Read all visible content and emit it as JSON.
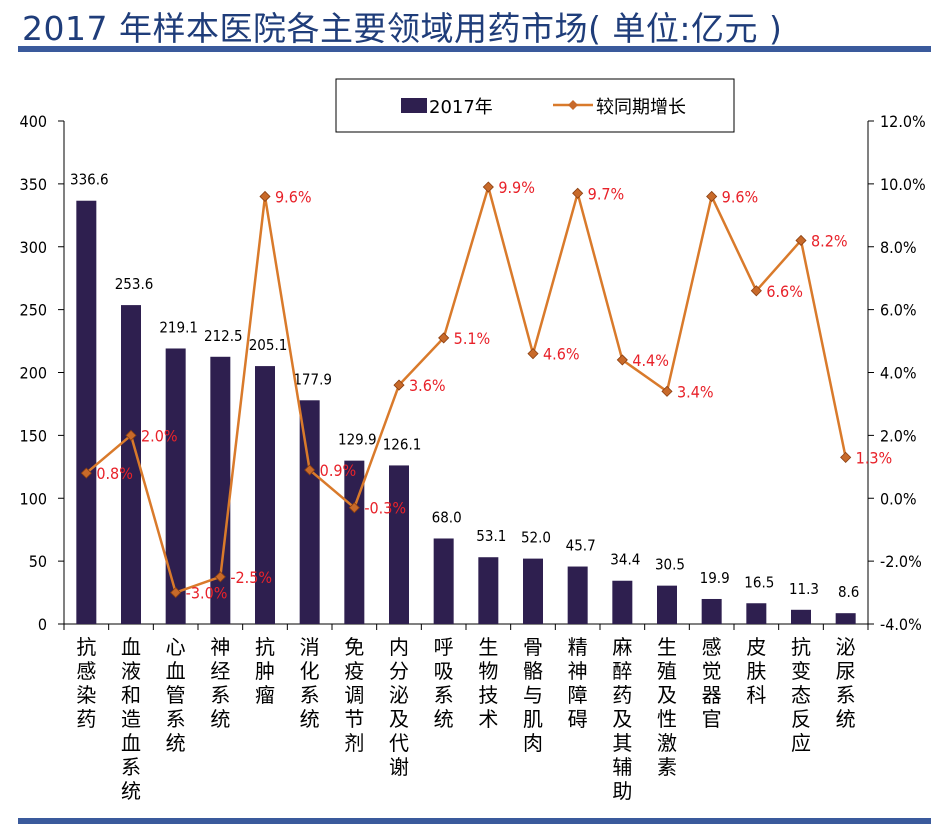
{
  "title": "2017 年样本医院各主要领域用药市场( 单位:亿元 )",
  "colors": {
    "bar": "#2e1f4f",
    "line": "#d97a2b",
    "marker": "#c86a2a",
    "line_label": "#e8222a",
    "rule": "#3a5a9c",
    "title": "#1f3d7a"
  },
  "chart_data": {
    "type": "bar",
    "title": "2017 年样本医院各主要领域用药市场( 单位:亿元 )",
    "legend_position": "top",
    "grid": false,
    "categories": [
      "抗感染药",
      "血液和造血系统",
      "心血管系统",
      "神经系统",
      "抗肿瘤",
      "消化系统",
      "免疫调节剂",
      "内分泌及代谢",
      "呼吸系统",
      "生物技术",
      "骨骼与肌肉",
      "精神障碍",
      "麻醉药及其辅助",
      "生殖及性激素",
      "感觉器官",
      "皮肤科",
      "抗变态反应",
      "泌尿系统"
    ],
    "series": [
      {
        "name": "2017年",
        "type": "bar",
        "axis": "left",
        "values": [
          336.6,
          253.6,
          219.1,
          212.5,
          205.1,
          177.9,
          129.9,
          126.1,
          68.0,
          53.1,
          52.0,
          45.7,
          34.4,
          30.5,
          19.9,
          16.5,
          11.3,
          8.6
        ],
        "labels": [
          "336.6",
          "253.6",
          "219.1",
          "212.5",
          "205.1",
          "177.9",
          "129.9",
          "126.1",
          "68.0",
          "53.1",
          "52.0",
          "45.7",
          "34.4",
          "30.5",
          "19.9",
          "16.5",
          "11.3",
          "8.6"
        ]
      },
      {
        "name": "较同期增长",
        "type": "line",
        "axis": "right",
        "values": [
          0.8,
          2.0,
          -3.0,
          -2.5,
          9.6,
          0.9,
          -0.3,
          3.6,
          5.1,
          9.9,
          4.6,
          9.7,
          4.4,
          3.4,
          9.6,
          6.6,
          8.2,
          1.3
        ],
        "labels": [
          "0.8%",
          "2.0%",
          "-3.0%",
          "-2.5%",
          "9.6%",
          "0.9%",
          "-0.3%",
          "3.6%",
          "5.1%",
          "9.9%",
          "4.6%",
          "9.7%",
          "4.4%",
          "3.4%",
          "9.6%",
          "6.6%",
          "8.2%",
          "1.3%"
        ]
      }
    ],
    "y_left": {
      "lim": [
        0,
        400
      ],
      "ticks": [
        0,
        50,
        100,
        150,
        200,
        250,
        300,
        350,
        400
      ],
      "tick_labels": [
        "0",
        "50",
        "100",
        "150",
        "200",
        "250",
        "300",
        "350",
        "400"
      ]
    },
    "y_right": {
      "lim": [
        -4.0,
        12.0
      ],
      "ticks": [
        -4,
        -2,
        0,
        2,
        4,
        6,
        8,
        10,
        12
      ],
      "tick_labels": [
        "-4.0%",
        "-2.0%",
        "0.0%",
        "2.0%",
        "4.0%",
        "6.0%",
        "8.0%",
        "10.0%",
        "12.0%"
      ]
    },
    "xlabel": "",
    "ylabel": ""
  }
}
